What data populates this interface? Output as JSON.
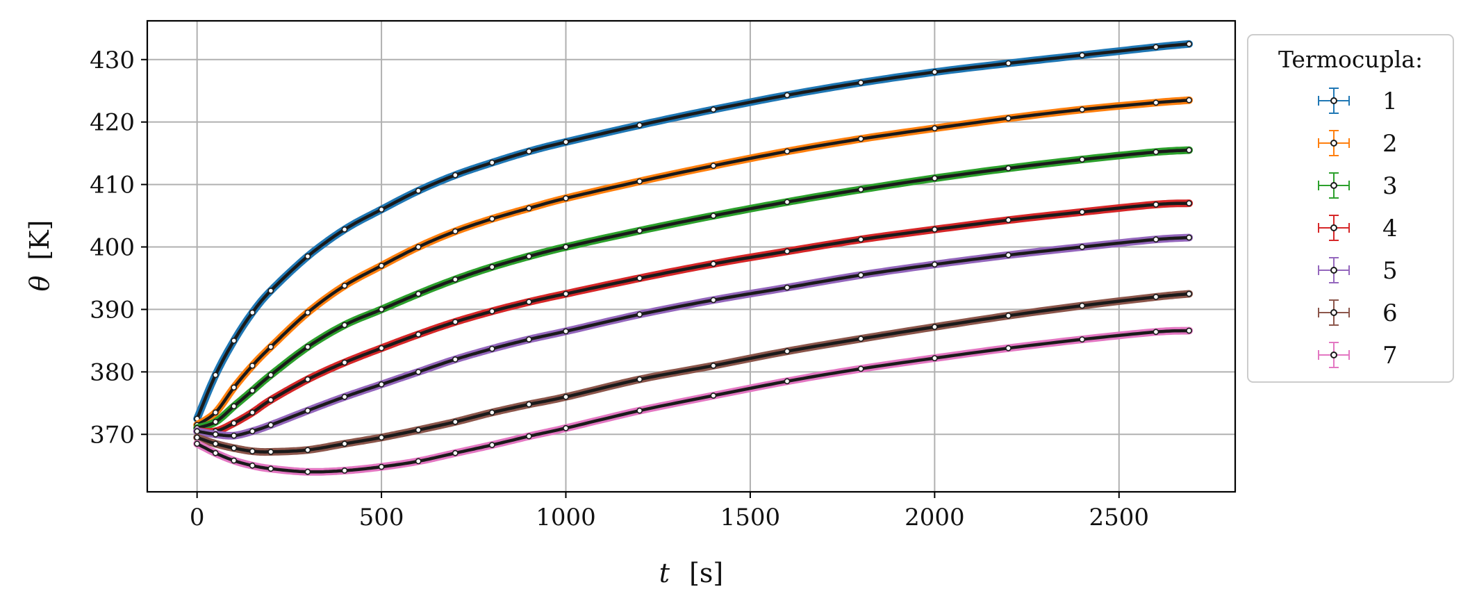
{
  "chart_data": {
    "type": "line",
    "title": "",
    "xlabel": "t",
    "xlabel_unit": "[s]",
    "ylabel": "θ",
    "ylabel_unit": "[K]",
    "xlim": [
      -135,
      2815
    ],
    "ylim": [
      360.8,
      436.2
    ],
    "xticks": [
      0,
      500,
      1000,
      1500,
      2000,
      2500
    ],
    "yticks": [
      370,
      380,
      390,
      400,
      410,
      420,
      430
    ],
    "grid": true,
    "legend": {
      "title": "Termocupla:",
      "placement": "outside-right"
    },
    "x": [
      0,
      50,
      100,
      150,
      200,
      300,
      400,
      500,
      600,
      700,
      800,
      900,
      1000,
      1200,
      1400,
      1600,
      1800,
      2000,
      2200,
      2400,
      2600,
      2690
    ],
    "series": [
      {
        "name": "1",
        "color": "#1f77b4",
        "values": [
          372.5,
          379.5,
          385.0,
          389.5,
          393.0,
          398.5,
          402.8,
          406.0,
          409.0,
          411.5,
          413.5,
          415.3,
          416.8,
          419.5,
          422.0,
          424.3,
          426.3,
          428.0,
          429.4,
          430.7,
          432.0,
          432.5
        ]
      },
      {
        "name": "2",
        "color": "#ff7f0e",
        "values": [
          371.5,
          373.5,
          377.5,
          381.0,
          384.0,
          389.5,
          393.8,
          397.0,
          400.0,
          402.5,
          404.5,
          406.2,
          407.8,
          410.5,
          413.0,
          415.3,
          417.3,
          419.0,
          420.6,
          422.0,
          423.1,
          423.5
        ]
      },
      {
        "name": "3",
        "color": "#2ca02c",
        "values": [
          371.0,
          372.0,
          374.5,
          377.0,
          379.5,
          384.0,
          387.5,
          390.0,
          392.5,
          394.8,
          396.8,
          398.5,
          400.0,
          402.6,
          405.0,
          407.2,
          409.2,
          411.0,
          412.6,
          414.0,
          415.2,
          415.5
        ]
      },
      {
        "name": "4",
        "color": "#d62728",
        "values": [
          370.5,
          370.5,
          371.8,
          373.5,
          375.5,
          378.8,
          381.5,
          383.8,
          386.0,
          388.0,
          389.7,
          391.2,
          392.5,
          395.0,
          397.3,
          399.3,
          401.2,
          402.8,
          404.3,
          405.6,
          406.8,
          407.0
        ]
      },
      {
        "name": "5",
        "color": "#9467bd",
        "values": [
          370.5,
          370.0,
          369.8,
          370.5,
          371.5,
          373.8,
          376.0,
          378.0,
          380.0,
          382.0,
          383.7,
          385.2,
          386.5,
          389.2,
          391.5,
          393.5,
          395.5,
          397.2,
          398.7,
          400.0,
          401.2,
          401.5
        ]
      },
      {
        "name": "6",
        "color": "#8c564b",
        "values": [
          369.5,
          368.5,
          367.8,
          367.3,
          367.2,
          367.5,
          368.5,
          369.5,
          370.7,
          372.0,
          373.5,
          374.8,
          376.0,
          378.8,
          381.0,
          383.3,
          385.3,
          387.2,
          389.0,
          390.6,
          392.0,
          392.5
        ]
      },
      {
        "name": "7",
        "color": "#e377c2",
        "values": [
          368.5,
          367.0,
          365.8,
          365.0,
          364.5,
          364.0,
          364.2,
          364.8,
          365.7,
          367.0,
          368.3,
          369.7,
          371.0,
          373.8,
          376.2,
          378.5,
          380.5,
          382.2,
          383.8,
          385.2,
          386.4,
          386.6
        ]
      }
    ]
  }
}
